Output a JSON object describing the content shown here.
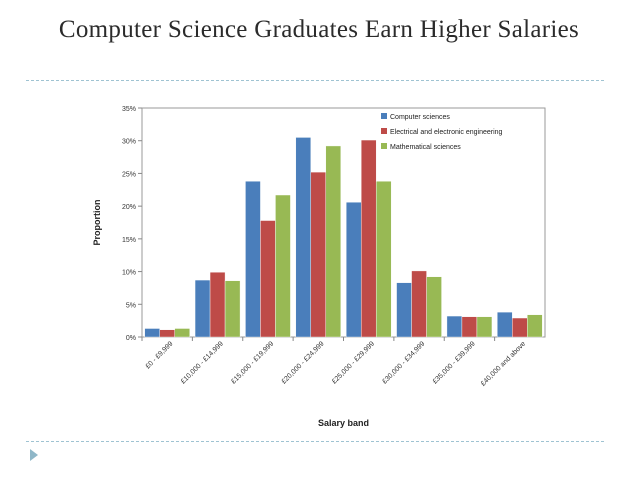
{
  "slide": {
    "title": "Computer Science Graduates Earn Higher Salaries"
  },
  "chart_data": {
    "type": "bar",
    "title": "",
    "xlabel": "Salary band",
    "ylabel": "Proportion",
    "ylim": [
      0,
      35
    ],
    "yticks": [
      0,
      5,
      10,
      15,
      20,
      25,
      30,
      35
    ],
    "ytick_labels": [
      "0%",
      "5%",
      "10%",
      "15%",
      "20%",
      "25%",
      "30%",
      "35%"
    ],
    "grid": false,
    "legend_position": "top-right",
    "categories": [
      "£0 - £9,999",
      "£10,000 - £14,999",
      "£15,000 - £19,999",
      "£20,000 - £24,999",
      "£25,000 - £29,999",
      "£30,000 - £34,999",
      "£35,000 - £39,999",
      "£40,000 and above"
    ],
    "series": [
      {
        "name": "Computer sciences",
        "color": "#4a7ebb",
        "values": [
          1.3,
          8.7,
          23.8,
          30.5,
          20.6,
          8.3,
          3.2,
          3.8
        ]
      },
      {
        "name": "Electrical and electronic engineering",
        "color": "#be4b48",
        "values": [
          1.1,
          9.9,
          17.8,
          25.2,
          30.1,
          10.1,
          3.1,
          2.9
        ]
      },
      {
        "name": "Mathematical sciences",
        "color": "#98b954",
        "values": [
          1.3,
          8.6,
          21.7,
          29.2,
          23.8,
          9.2,
          3.1,
          3.4
        ]
      }
    ]
  }
}
